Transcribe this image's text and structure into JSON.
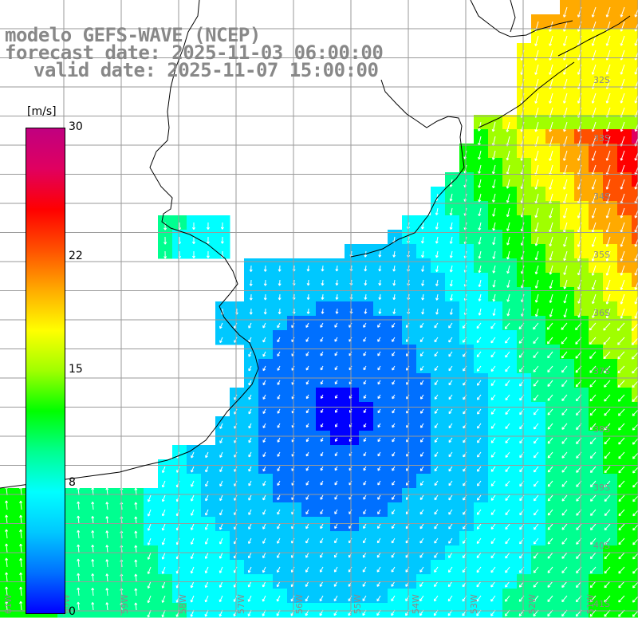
{
  "title": {
    "model": "modelo GEFS-WAVE (NCEP)",
    "forecast": "forecast date: 2025-11-03 06:00:00",
    "valid": "valid date: 2025-11-07 15:00:00"
  },
  "colorbar": {
    "unit": "[m/s]",
    "ticks": [
      {
        "value": 30,
        "label": "30"
      },
      {
        "value": 22,
        "label": "22"
      },
      {
        "value": 15,
        "label": "15"
      },
      {
        "value": 8,
        "label": "8"
      },
      {
        "value": 0,
        "label": "0"
      }
    ],
    "colors": [
      "#0000ff",
      "#0070ff",
      "#00c8ff",
      "#00ffff",
      "#00ff90",
      "#00ff00",
      "#a0ff00",
      "#ffff00",
      "#ffaa00",
      "#ff5000",
      "#ff0000",
      "#e00060",
      "#c00080"
    ]
  },
  "map": {
    "lat_labels": [
      "32S",
      "33S",
      "34S",
      "35S",
      "36S",
      "37S",
      "38S",
      "39S",
      "40S",
      "41S"
    ],
    "lon_labels": [
      "61W",
      "60W",
      "59W",
      "58W",
      "57W",
      "56W",
      "55W",
      "54W",
      "53W",
      "52W",
      "51W"
    ],
    "land_color": "#ffffff",
    "grid_color": "#9a9a9a",
    "vector_color": "#ffffff",
    "field": "wind speed with direction vectors"
  }
}
